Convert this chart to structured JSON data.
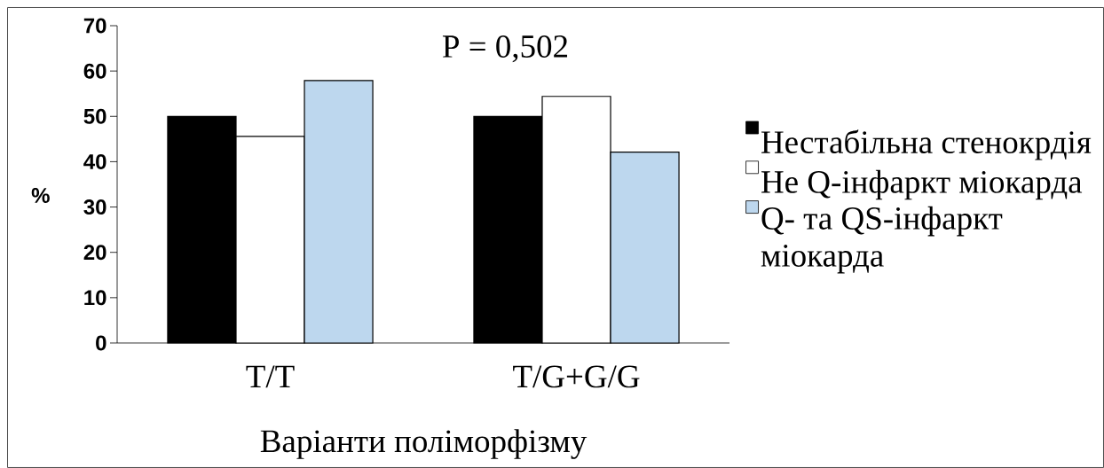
{
  "chart_data": {
    "type": "bar",
    "categories": [
      "T/T",
      "T/G+G/G"
    ],
    "series": [
      {
        "name": "Нестабільна стенокрдія",
        "color": "#000000",
        "values": [
          50,
          50
        ]
      },
      {
        "name": "Не Q-інфаркт міокарда",
        "color": "#ffffff",
        "values": [
          45.6,
          54.4
        ]
      },
      {
        "name": "Q- та QS-інфаркт міокарда",
        "color": "#bdd7ee",
        "values": [
          57.9,
          42.1
        ]
      }
    ],
    "xlabel": "Варіанти поліморфізму",
    "ylabel": "%",
    "ylim": [
      0,
      70
    ],
    "yticks": [
      0,
      10,
      20,
      30,
      40,
      50,
      60,
      70
    ],
    "annotations": [
      "P = 0,502"
    ],
    "legend": "right"
  }
}
